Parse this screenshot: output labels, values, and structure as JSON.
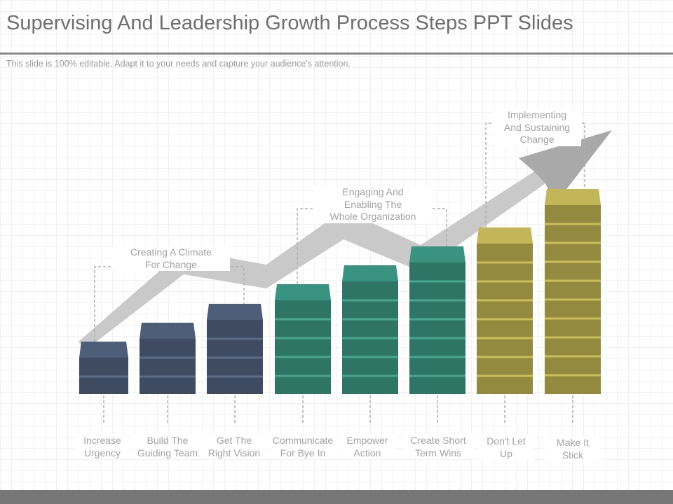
{
  "header": {
    "title": "Supervising And Leadership Growth Process Steps PPT Slides",
    "subtitle": "This slide is 100% editable. Adapt it to your needs and capture your audience's attention."
  },
  "groups": [
    {
      "label": "Creating A Climate For Change",
      "lines": [
        "Creating A Climate",
        "For Change"
      ],
      "color": "#3e4b61"
    },
    {
      "label": "Engaging And Enabling The Whole Organization",
      "lines": [
        "Engaging And",
        "Enabling The",
        "Whole Organization"
      ],
      "color": "#2f7566"
    },
    {
      "label": "Implementing And Sustaining Change",
      "lines": [
        "Implementing",
        "And Sustaining",
        "Change"
      ],
      "color": "#948a3f"
    }
  ],
  "steps": [
    {
      "label": "Increase Urgency",
      "lines": [
        "Increase",
        "Urgency"
      ],
      "order": 1,
      "group": 0
    },
    {
      "label": "Build The Guiding Team",
      "lines": [
        "Build The",
        "Guiding Team"
      ],
      "order": 2,
      "group": 0
    },
    {
      "label": "Get The Right Vision",
      "lines": [
        "Get The",
        "Right Vision"
      ],
      "order": 3,
      "group": 0
    },
    {
      "label": "Communicate For Bye In",
      "lines": [
        "Communicate",
        "For Bye In"
      ],
      "order": 4,
      "group": 1
    },
    {
      "label": "Empower Action",
      "lines": [
        "Empower",
        "Action"
      ],
      "order": 5,
      "group": 1
    },
    {
      "label": "Create Short Term Wins",
      "lines": [
        "Create Short",
        "Term Wins"
      ],
      "order": 6,
      "group": 1
    },
    {
      "label": "Don't Let Up",
      "lines": [
        "Don't Let",
        "Up"
      ],
      "order": 7,
      "group": 2
    },
    {
      "label": "Make It Stick",
      "lines": [
        "Make It",
        "Stick"
      ],
      "order": 8,
      "group": 2
    }
  ],
  "colors": {
    "arrow": "#c9c9c9",
    "arrow_head": "#a9a9a9",
    "connector": "#b0b0b0",
    "label_text": "#a3a3a3",
    "navy_top": "#4e5d78",
    "navy_body": "#3e4b61",
    "teal_top": "#3a9380",
    "teal_body": "#2f7566",
    "olive_top": "#c2b658",
    "olive_body": "#948a3f"
  }
}
